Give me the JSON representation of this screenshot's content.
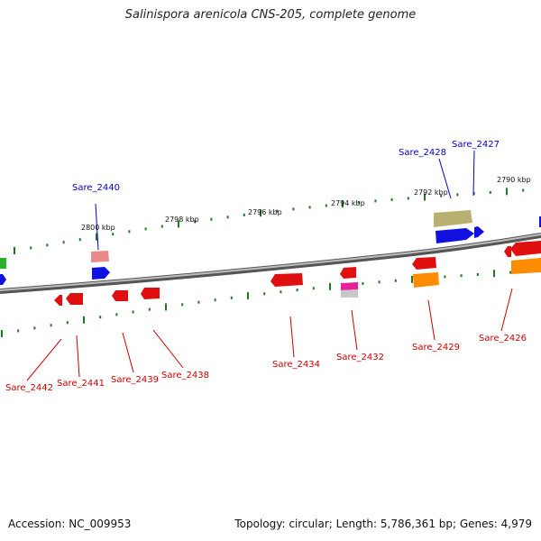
{
  "title": "Salinispora arenicola CNS-205, complete genome",
  "footer": {
    "accession": "Accession: NC_009953",
    "summary": "Topology: circular; Length: 5,786,361 bp; Genes: 4,979"
  },
  "ruler": {
    "tick_labels": [
      "2800 kbp",
      "2798 kbp",
      "2796 kbp",
      "2794 kbp",
      "2792 kbp",
      "2790 kbp"
    ]
  },
  "colors": {
    "backbone": "#8a8a8a",
    "tick": "#1e7a1e",
    "forward_label": "#0000c8",
    "reverse_label": "#cc0000"
  },
  "forward_gene_labels": [
    "Sare_2440",
    "Sare_2428",
    "Sare_2427"
  ],
  "reverse_gene_labels": [
    "Sare_2442",
    "Sare_2441",
    "Sare_2439",
    "Sare_2438",
    "Sare_2434",
    "Sare_2432",
    "Sare_2429",
    "Sare_2426"
  ]
}
